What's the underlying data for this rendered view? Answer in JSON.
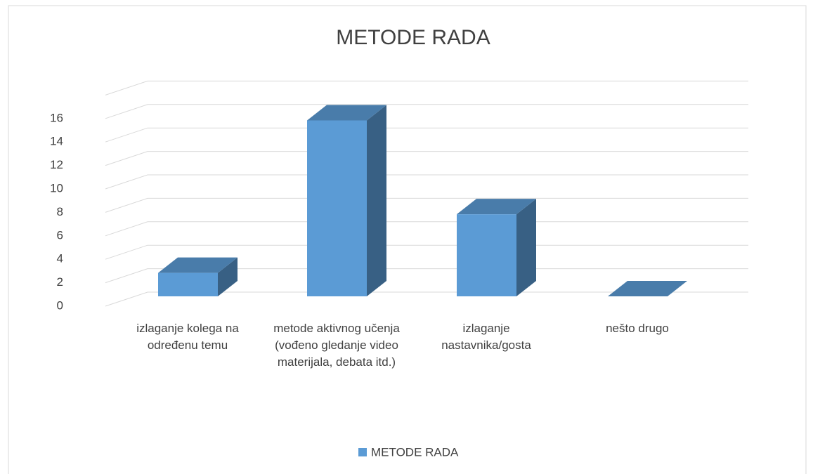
{
  "chart_data": {
    "type": "bar3d",
    "title": "METODE RADA",
    "categories": [
      "izlaganje kolega na određenu temu",
      "metode aktivnog učenja (vođeno gledanje video materijala, debata itd.)",
      "izlaganje nastavnika/gosta",
      "nešto drugo"
    ],
    "series": [
      {
        "name": "METODE RADA",
        "color": "#5b9bd5",
        "values": [
          2,
          15,
          7,
          0
        ]
      }
    ],
    "ylim": [
      0,
      18
    ],
    "yticks": [
      0,
      2,
      4,
      6,
      8,
      10,
      12,
      14,
      16
    ],
    "grid": true,
    "legend": "bottom"
  }
}
